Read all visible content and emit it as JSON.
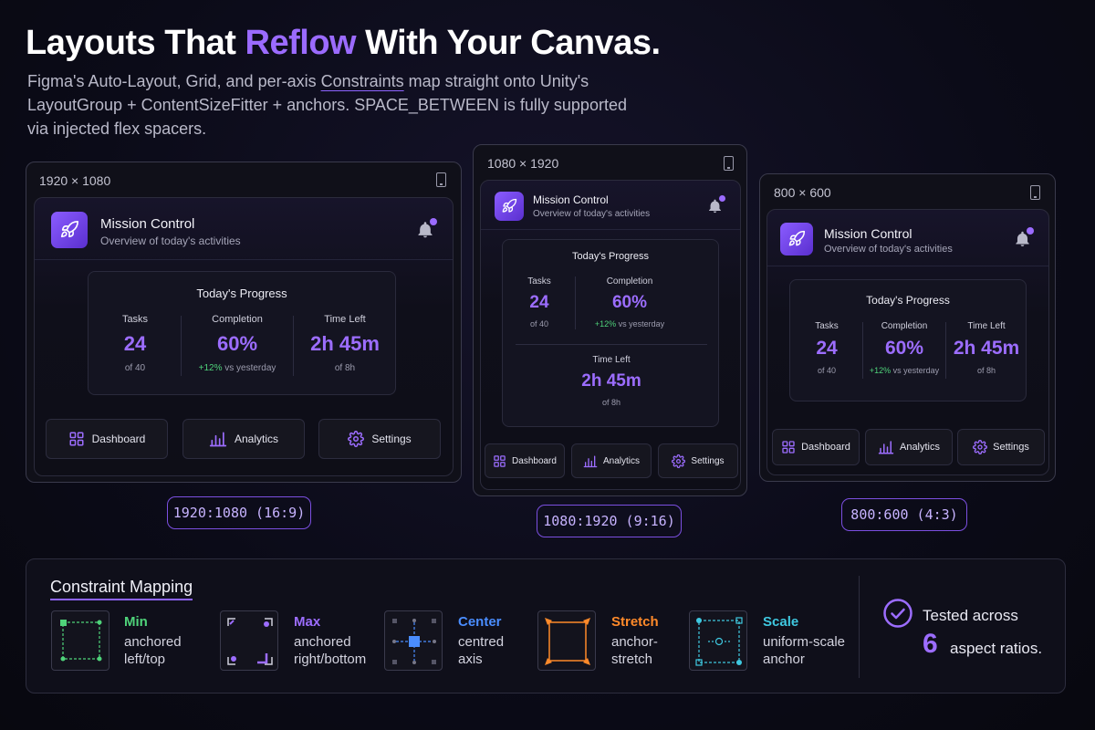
{
  "hero": {
    "title_pre": "Layouts That ",
    "title_accent": "Reflow",
    "title_post": " With Your Canvas.",
    "sub_1": "Figma's Auto-Layout, Grid, and per-axis ",
    "sub_link": "Constraints",
    "sub_2": " map straight onto Unity's LayoutGroup + ContentSizeFitter + anchors. SPACE_BETWEEN is fully supported via injected flex spacers."
  },
  "app": {
    "title": "Mission Control",
    "subtitle": "Overview of today's activities",
    "progress_title": "Today's Progress",
    "stats": {
      "tasks": {
        "label": "Tasks",
        "value": "24",
        "sub": "of 40"
      },
      "completion": {
        "label": "Completion",
        "value": "60%",
        "sub_pos": "+12%",
        "sub_rest": " vs yesterday"
      },
      "time": {
        "label": "Time Left",
        "value": "2h 45m",
        "sub": "of 8h"
      }
    },
    "nav": {
      "dashboard": "Dashboard",
      "analytics": "Analytics",
      "settings": "Settings"
    }
  },
  "frames": {
    "wide": {
      "label": "1920 × 1080",
      "ratio": "1920:1080 (16:9)"
    },
    "tall": {
      "label": "1080 × 1920",
      "ratio": "1080:1920 (9:16)"
    },
    "std": {
      "label": "800 × 600",
      "ratio": "800:600 (4:3)"
    }
  },
  "mapping": {
    "title": "Constraint Mapping",
    "items": [
      {
        "name": "Min",
        "desc_1": "anchored",
        "desc_2": "left/top",
        "color": "#4fd37a"
      },
      {
        "name": "Max",
        "desc_1": "anchored",
        "desc_2": "right/bottom",
        "color": "#9c6dff"
      },
      {
        "name": "Center",
        "desc_1": "centred",
        "desc_2": "axis",
        "color": "#4a8dff"
      },
      {
        "name": "Stretch",
        "desc_1": "anchor-",
        "desc_2": "stretch",
        "color": "#ff8a2a"
      },
      {
        "name": "Scale",
        "desc_1": "uniform-scale",
        "desc_2": "anchor",
        "color": "#3fc8e0"
      }
    ],
    "tested_1": "Tested across",
    "tested_num": "6",
    "tested_2": "aspect ratios."
  }
}
